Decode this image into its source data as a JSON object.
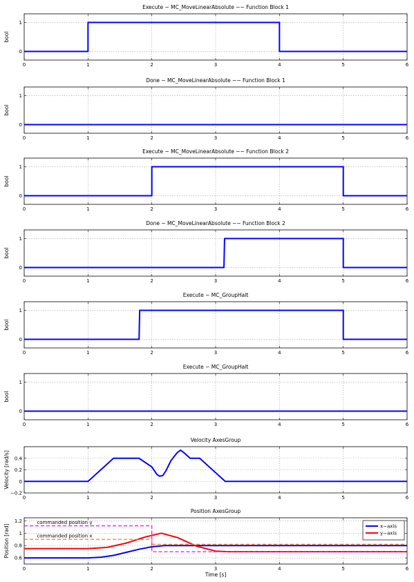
{
  "chart_data": [
    {
      "type": "line",
      "title": "Execute − MC_MoveLinearAbsolute −− Function Block 1",
      "xlabel": "",
      "ylabel": "bool",
      "xlim": [
        0,
        6
      ],
      "ylim": [
        -0.3,
        1.3
      ],
      "xticks": [
        0,
        1,
        2,
        3,
        4,
        5,
        6
      ],
      "yticks": [
        0,
        1
      ],
      "grid": true,
      "series": [
        {
          "color": "#0000ff",
          "x": [
            0,
            1,
            1,
            4,
            4,
            6
          ],
          "y": [
            0,
            0,
            1,
            1,
            0,
            0
          ]
        }
      ]
    },
    {
      "type": "line",
      "title": "Done − MC_MoveLinearAbsolute −− Function Block 1",
      "xlabel": "",
      "ylabel": "bool",
      "xlim": [
        0,
        6
      ],
      "ylim": [
        -0.3,
        1.3
      ],
      "xticks": [
        0,
        1,
        2,
        3,
        4,
        5,
        6
      ],
      "yticks": [
        0,
        1
      ],
      "grid": true,
      "series": [
        {
          "color": "#0000ff",
          "x": [
            0,
            6
          ],
          "y": [
            0,
            0
          ]
        }
      ]
    },
    {
      "type": "line",
      "title": "Execute − MC_MoveLinearAbsolute −− Function Block 2",
      "xlabel": "",
      "ylabel": "bool",
      "xlim": [
        0,
        6
      ],
      "ylim": [
        -0.3,
        1.3
      ],
      "xticks": [
        0,
        1,
        2,
        3,
        4,
        5,
        6
      ],
      "yticks": [
        0,
        1
      ],
      "grid": true,
      "series": [
        {
          "color": "#0000ff",
          "x": [
            0,
            2,
            2,
            5,
            5,
            6
          ],
          "y": [
            0,
            0,
            1,
            1,
            0,
            0
          ]
        }
      ]
    },
    {
      "type": "line",
      "title": "Done − MC_MoveLinearAbsolute −− Function Block 2",
      "xlabel": "",
      "ylabel": "bool",
      "xlim": [
        0,
        6
      ],
      "ylim": [
        -0.3,
        1.3
      ],
      "xticks": [
        0,
        1,
        2,
        3,
        4,
        5,
        6
      ],
      "yticks": [
        0,
        1
      ],
      "grid": true,
      "series": [
        {
          "color": "#0000ff",
          "x": [
            0,
            3.13,
            3.14,
            5,
            5,
            6
          ],
          "y": [
            0,
            0,
            1,
            1,
            0,
            0
          ]
        }
      ]
    },
    {
      "type": "line",
      "title": "Execute − MC_GroupHalt",
      "xlabel": "",
      "ylabel": "bool",
      "xlim": [
        0,
        6
      ],
      "ylim": [
        -0.3,
        1.3
      ],
      "xticks": [
        0,
        1,
        2,
        3,
        4,
        5,
        6
      ],
      "yticks": [
        0,
        1
      ],
      "grid": true,
      "series": [
        {
          "color": "#0000ff",
          "x": [
            0,
            1.8,
            1.81,
            5,
            5,
            6
          ],
          "y": [
            0,
            0,
            1,
            1,
            0,
            0
          ]
        }
      ]
    },
    {
      "type": "line",
      "title": "Execute − MC_GroupHalt",
      "xlabel": "",
      "ylabel": "bool",
      "xlim": [
        0,
        6
      ],
      "ylim": [
        -0.3,
        1.3
      ],
      "xticks": [
        0,
        1,
        2,
        3,
        4,
        5,
        6
      ],
      "yticks": [
        0,
        1
      ],
      "grid": true,
      "series": [
        {
          "color": "#0000ff",
          "x": [
            0,
            6
          ],
          "y": [
            0,
            0
          ]
        }
      ]
    },
    {
      "type": "line",
      "title": "Velocity AxesGroup",
      "xlabel": "",
      "ylabel": "Velocity [rad/s]",
      "xlim": [
        0,
        6
      ],
      "ylim": [
        -0.2,
        0.6
      ],
      "xticks": [
        0,
        1,
        2,
        3,
        4,
        5,
        6
      ],
      "yticks": [
        -0.2,
        0,
        0.2,
        0.4
      ],
      "grid": true,
      "series": [
        {
          "color": "#0000ff",
          "x": [
            0,
            1,
            1.4,
            1.8,
            2.0,
            2.08,
            2.12,
            2.17,
            2.22,
            2.3,
            2.4,
            2.45,
            2.5,
            2.6,
            2.75,
            3.0,
            3.15,
            6
          ],
          "y": [
            0,
            0,
            0.4,
            0.4,
            0.25,
            0.12,
            0.09,
            0.1,
            0.18,
            0.36,
            0.5,
            0.54,
            0.5,
            0.4,
            0.4,
            0.15,
            0,
            0
          ]
        }
      ]
    },
    {
      "type": "line",
      "title": "Position AxesGroup",
      "xlabel": "Time [s]",
      "ylabel": "Position [rad]",
      "xlim": [
        0,
        6
      ],
      "ylim": [
        0.5,
        1.25
      ],
      "xticks": [
        0,
        1,
        2,
        3,
        4,
        5,
        6
      ],
      "yticks": [
        0.6,
        0.8,
        1,
        1.2
      ],
      "grid": true,
      "legend_position": "top-right",
      "annotations": [
        "commanded position y",
        "commanded position x"
      ],
      "series": [
        {
          "name": "x−axis",
          "color": "#0000ff",
          "x": [
            0,
            1,
            1.2,
            1.4,
            1.6,
            1.8,
            2.0,
            2.2,
            2.5,
            2.8,
            3.1,
            6
          ],
          "y": [
            0.6,
            0.6,
            0.61,
            0.64,
            0.69,
            0.74,
            0.78,
            0.8,
            0.8,
            0.8,
            0.8,
            0.8
          ]
        },
        {
          "name": "y−axis",
          "color": "#ff0000",
          "x": [
            0,
            1,
            1.3,
            1.6,
            1.9,
            2.15,
            2.4,
            2.7,
            3.0,
            3.2,
            6
          ],
          "y": [
            0.75,
            0.75,
            0.77,
            0.84,
            0.94,
            1.0,
            0.93,
            0.79,
            0.71,
            0.7,
            0.7
          ]
        },
        {
          "color": "#ff00ff",
          "dashed": true,
          "x": [
            0,
            2,
            2,
            6
          ],
          "y": [
            1.12,
            1.12,
            0.7,
            0.7
          ]
        },
        {
          "color": "#ff8000",
          "dashed": true,
          "x": [
            0,
            2,
            2,
            6
          ],
          "y": [
            0.9,
            0.9,
            0.82,
            0.82
          ]
        }
      ]
    }
  ]
}
